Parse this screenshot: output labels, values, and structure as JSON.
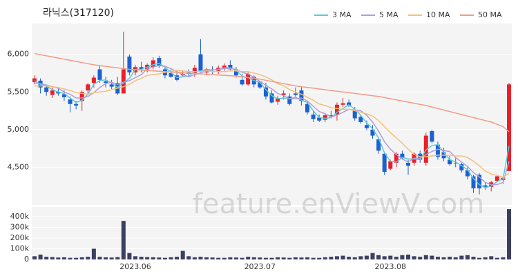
{
  "chart_data": {
    "type": "candlestick",
    "title": "라닉스(317120)",
    "watermark": "feature.enViewV.com",
    "categories": [
      null,
      null,
      null,
      null,
      null,
      null,
      null,
      null,
      null,
      null,
      null,
      null,
      null,
      null,
      null,
      null,
      null,
      "2023.06",
      null,
      null,
      null,
      null,
      null,
      null,
      null,
      null,
      null,
      null,
      null,
      null,
      null,
      null,
      null,
      null,
      null,
      null,
      null,
      null,
      "2023.07",
      null,
      null,
      null,
      null,
      null,
      null,
      null,
      null,
      null,
      null,
      null,
      null,
      null,
      null,
      null,
      null,
      null,
      null,
      null,
      null,
      null,
      "2023.08",
      null,
      null,
      null,
      null,
      null,
      null,
      null,
      null,
      null,
      null,
      null,
      null,
      null,
      null,
      null,
      null,
      null,
      null,
      null,
      null
    ],
    "up_color": "#e8202a",
    "down_color": "#1b61d1",
    "open": [
      5630,
      5650,
      5560,
      5460,
      5500,
      5470,
      5400,
      5340,
      5380,
      5520,
      5620,
      5800,
      5640,
      5600,
      5620,
      5480,
      5970,
      5760,
      5830,
      5800,
      5830,
      5950,
      5800,
      5750,
      5720,
      5720,
      5760,
      5740,
      6000,
      5760,
      5800,
      5780,
      5820,
      5860,
      5800,
      5660,
      5600,
      5700,
      5640,
      5560,
      5480,
      5370,
      5460,
      5440,
      5480,
      5520,
      5340,
      5200,
      5160,
      5130,
      5190,
      5200,
      5330,
      5360,
      5260,
      5170,
      5060,
      5000,
      4870,
      4680,
      4480,
      4560,
      4680,
      4560,
      4560,
      4680,
      4560,
      4980,
      4800,
      4700,
      4600,
      4560,
      4540,
      4460,
      4380,
      4400,
      4260,
      4240,
      4320,
      4330,
      4450
    ],
    "high": [
      5720,
      5680,
      5600,
      5560,
      5560,
      5520,
      5440,
      5380,
      5520,
      5620,
      5720,
      5850,
      5700,
      5660,
      5700,
      6300,
      6000,
      5860,
      5900,
      5880,
      5960,
      5980,
      5830,
      5800,
      5760,
      5780,
      5800,
      5860,
      6200,
      5820,
      5840,
      5850,
      5880,
      5920,
      5830,
      5740,
      5760,
      5720,
      5650,
      5620,
      5520,
      5450,
      5520,
      5480,
      5560,
      5560,
      5380,
      5250,
      5200,
      5220,
      5250,
      5360,
      5420,
      5400,
      5300,
      5200,
      5120,
      5060,
      4900,
      4700,
      4600,
      4700,
      4720,
      4600,
      4700,
      4720,
      4960,
      5000,
      4840,
      4760,
      4650,
      4620,
      4560,
      4500,
      4400,
      4420,
      4300,
      4320,
      4400,
      4380,
      5620
    ],
    "low": [
      5600,
      5480,
      5450,
      5420,
      5450,
      5380,
      5230,
      5270,
      5250,
      5480,
      5560,
      5620,
      5560,
      5540,
      5460,
      5480,
      5720,
      5720,
      5760,
      5760,
      5800,
      5820,
      5680,
      5690,
      5640,
      5700,
      5700,
      5700,
      5760,
      5720,
      5740,
      5740,
      5780,
      5790,
      5690,
      5580,
      5580,
      5560,
      5540,
      5400,
      5350,
      5330,
      5400,
      5320,
      5440,
      5320,
      5200,
      5100,
      5100,
      5100,
      5150,
      5120,
      5300,
      5300,
      5120,
      5080,
      4990,
      4880,
      4680,
      4400,
      4460,
      4500,
      4600,
      4400,
      4520,
      4560,
      4520,
      4820,
      4600,
      4580,
      4520,
      4500,
      4430,
      4340,
      4160,
      4140,
      4200,
      4180,
      4300,
      4280,
      4450
    ],
    "close": [
      5680,
      5560,
      5500,
      5520,
      5480,
      5430,
      5340,
      5320,
      5500,
      5600,
      5690,
      5660,
      5620,
      5570,
      5480,
      5800,
      5760,
      5830,
      5800,
      5860,
      5920,
      5850,
      5720,
      5700,
      5660,
      5740,
      5740,
      5820,
      5780,
      5800,
      5790,
      5820,
      5850,
      5800,
      5720,
      5600,
      5740,
      5600,
      5560,
      5440,
      5360,
      5420,
      5480,
      5340,
      5460,
      5380,
      5230,
      5140,
      5120,
      5190,
      5170,
      5330,
      5350,
      5320,
      5150,
      5100,
      5020,
      4920,
      4720,
      4440,
      4580,
      4680,
      4620,
      4520,
      4680,
      4600,
      4920,
      4840,
      4640,
      4620,
      4540,
      4560,
      4460,
      4380,
      4220,
      4220,
      4240,
      4300,
      4380,
      4360,
      5600
    ],
    "series": [
      {
        "name": "3 MA",
        "color": "#5bc8d8",
        "values": [
          5650,
          5600,
          5580,
          5530,
          5500,
          5480,
          5420,
          5360,
          5390,
          5470,
          5600,
          5650,
          5660,
          5620,
          5560,
          5620,
          5680,
          5800,
          5800,
          5830,
          5860,
          5880,
          5830,
          5760,
          5690,
          5700,
          5710,
          5770,
          5780,
          5800,
          5790,
          5800,
          5820,
          5820,
          5790,
          5710,
          5690,
          5650,
          5630,
          5530,
          5450,
          5410,
          5420,
          5410,
          5430,
          5390,
          5360,
          5250,
          5160,
          5150,
          5160,
          5230,
          5280,
          5330,
          5270,
          5190,
          5090,
          5010,
          4890,
          4690,
          4580,
          4570,
          4630,
          4610,
          4610,
          4600,
          4730,
          4790,
          4800,
          4700,
          4600,
          4570,
          4520,
          4470,
          4350,
          4270,
          4230,
          4250,
          4310,
          4350,
          4780
        ]
      },
      {
        "name": "5 MA",
        "color": "#b19cd9",
        "values": [
          5620,
          5610,
          5590,
          5570,
          5550,
          5500,
          5470,
          5420,
          5420,
          5440,
          5490,
          5560,
          5610,
          5630,
          5600,
          5630,
          5650,
          5690,
          5730,
          5810,
          5830,
          5850,
          5840,
          5810,
          5770,
          5730,
          5700,
          5730,
          5750,
          5780,
          5790,
          5800,
          5810,
          5810,
          5800,
          5760,
          5740,
          5690,
          5640,
          5590,
          5540,
          5480,
          5450,
          5410,
          5410,
          5420,
          5380,
          5310,
          5240,
          5210,
          5170,
          5190,
          5230,
          5270,
          5260,
          5250,
          5190,
          5100,
          4980,
          4840,
          4740,
          4670,
          4610,
          4570,
          4620,
          4620,
          4670,
          4710,
          4740,
          4720,
          4710,
          4630,
          4570,
          4510,
          4430,
          4370,
          4300,
          4270,
          4270,
          4300,
          4580
        ]
      },
      {
        "name": "10 MA",
        "color": "#f5c07a",
        "values": [
          5580,
          5580,
          5580,
          5570,
          5560,
          5540,
          5520,
          5490,
          5480,
          5470,
          5490,
          5500,
          5510,
          5530,
          5550,
          5570,
          5600,
          5650,
          5680,
          5720,
          5730,
          5740,
          5760,
          5770,
          5790,
          5780,
          5770,
          5770,
          5770,
          5780,
          5770,
          5770,
          5770,
          5780,
          5780,
          5770,
          5770,
          5750,
          5730,
          5700,
          5660,
          5610,
          5580,
          5530,
          5500,
          5470,
          5430,
          5390,
          5340,
          5320,
          5290,
          5280,
          5270,
          5270,
          5250,
          5230,
          5210,
          5180,
          5120,
          5040,
          4960,
          4890,
          4820,
          4740,
          4670,
          4640,
          4640,
          4650,
          4660,
          4660,
          4660,
          4650,
          4650,
          4630,
          4580,
          4520,
          4450,
          4410,
          4390,
          4370,
          4420
        ]
      },
      {
        "name": "50 MA",
        "color": "#f59a84",
        "values": [
          6010,
          5995,
          5980,
          5965,
          5950,
          5935,
          5920,
          5905,
          5890,
          5875,
          5860,
          5850,
          5840,
          5830,
          5820,
          5810,
          5800,
          5795,
          5790,
          5785,
          5780,
          5775,
          5770,
          5765,
          5760,
          5755,
          5750,
          5745,
          5740,
          5735,
          5730,
          5725,
          5720,
          5715,
          5710,
          5700,
          5690,
          5680,
          5670,
          5655,
          5640,
          5625,
          5610,
          5595,
          5580,
          5570,
          5560,
          5550,
          5540,
          5530,
          5520,
          5510,
          5500,
          5490,
          5480,
          5470,
          5460,
          5450,
          5440,
          5425,
          5410,
          5395,
          5380,
          5365,
          5350,
          5335,
          5320,
          5300,
          5280,
          5260,
          5240,
          5220,
          5200,
          5180,
          5160,
          5140,
          5120,
          5100,
          5070,
          5040,
          4970
        ]
      }
    ],
    "ylim": [
      4000,
      6400
    ],
    "yticks": [
      {
        "value": 4500,
        "label": "4,500"
      },
      {
        "value": 5000,
        "label": "5,000"
      },
      {
        "value": 5500,
        "label": "5,500"
      },
      {
        "value": 6000,
        "label": "6,000"
      }
    ],
    "volume": {
      "color": "#3b3f63",
      "values": [
        30000,
        45000,
        25000,
        22000,
        18000,
        20000,
        15000,
        15000,
        20000,
        25000,
        100000,
        25000,
        20000,
        18000,
        22000,
        360000,
        60000,
        30000,
        25000,
        22000,
        20000,
        18000,
        15000,
        20000,
        25000,
        80000,
        30000,
        20000,
        25000,
        20000,
        18000,
        15000,
        15000,
        20000,
        18000,
        15000,
        25000,
        20000,
        18000,
        15000,
        15000,
        20000,
        18000,
        15000,
        20000,
        18000,
        20000,
        15000,
        15000,
        20000,
        25000,
        30000,
        35000,
        25000,
        20000,
        30000,
        35000,
        60000,
        40000,
        30000,
        35000,
        25000,
        40000,
        45000,
        30000,
        25000,
        40000,
        35000,
        25000,
        20000,
        25000,
        20000,
        35000,
        40000,
        25000,
        15000,
        20000,
        30000,
        15000,
        20000,
        470000
      ],
      "ylim": [
        0,
        490000
      ],
      "yticks": [
        0,
        {
          "value": 100000,
          "label": "100k"
        },
        {
          "value": 200000,
          "label": "200k"
        },
        {
          "value": 300000,
          "label": "300k"
        },
        {
          "value": 400000,
          "label": "400k"
        }
      ]
    },
    "grid": true,
    "legend": "top-right"
  }
}
